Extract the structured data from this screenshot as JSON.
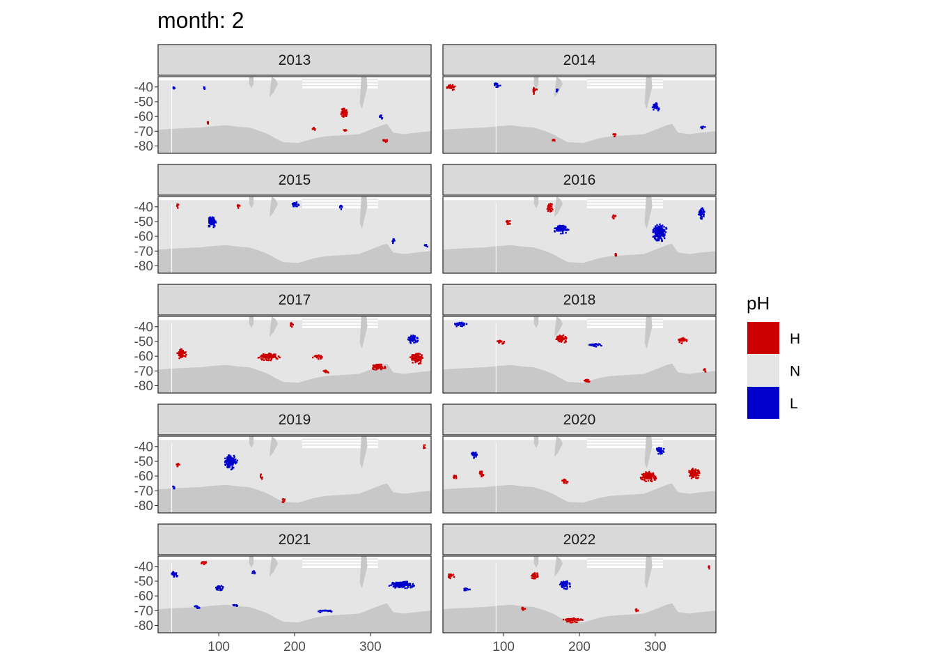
{
  "chart_data": {
    "type": "heatmap",
    "title": "month: 2",
    "xlabel": "",
    "ylabel": "",
    "x_ticks": [
      100,
      200,
      300
    ],
    "x_tick_labels": [
      "100",
      "200",
      "300"
    ],
    "y_ticks": [
      -40,
      -50,
      -60,
      -70,
      -80
    ],
    "y_tick_labels": [
      "-40",
      "-50",
      "-60",
      "-70",
      "-80"
    ],
    "xlim": [
      20,
      380
    ],
    "ylim": [
      -85,
      -33
    ],
    "legend": {
      "title": "pH",
      "position": "right",
      "entries": [
        {
          "label": "H",
          "color": "#CC0000"
        },
        {
          "label": "N",
          "color": "#E5E5E5"
        },
        {
          "label": "L",
          "color": "#0000CC"
        }
      ]
    },
    "colors": {
      "ocean": "#E5E5E5",
      "land": "#C8C8C8",
      "strip_bg": "#D9D9D9",
      "panel_border": "#333333"
    },
    "panels": [
      {
        "year": "2013",
        "regions": [
          {
            "category": "H",
            "lon": 265,
            "lat": -57,
            "dlon": 10,
            "dlat": 7
          },
          {
            "category": "L",
            "lon": 313,
            "lat": -60,
            "dlon": 5,
            "dlat": 3
          },
          {
            "category": "H",
            "lon": 225,
            "lat": -68,
            "dlon": 5,
            "dlat": 2
          },
          {
            "category": "H",
            "lon": 265,
            "lat": -69,
            "dlon": 6,
            "dlat": 1
          },
          {
            "category": "H",
            "lon": 318,
            "lat": -76,
            "dlon": 8,
            "dlat": 2
          },
          {
            "category": "L",
            "lon": 40,
            "lat": -40,
            "dlon": 2,
            "dlat": 2
          },
          {
            "category": "L",
            "lon": 80,
            "lat": -40,
            "dlon": 2,
            "dlat": 2
          },
          {
            "category": "H",
            "lon": 85,
            "lat": -64,
            "dlon": 3,
            "dlat": 2
          }
        ]
      },
      {
        "year": "2014",
        "regions": [
          {
            "category": "H",
            "lon": 30,
            "lat": -40,
            "dlon": 12,
            "dlat": 4
          },
          {
            "category": "L",
            "lon": 90,
            "lat": -38,
            "dlon": 10,
            "dlat": 3
          },
          {
            "category": "H",
            "lon": 140,
            "lat": -42,
            "dlon": 6,
            "dlat": 5
          },
          {
            "category": "L",
            "lon": 170,
            "lat": -42,
            "dlon": 3,
            "dlat": 3
          },
          {
            "category": "L",
            "lon": 300,
            "lat": -53,
            "dlon": 10,
            "dlat": 6
          },
          {
            "category": "L",
            "lon": 362,
            "lat": -67,
            "dlon": 8,
            "dlat": 2
          },
          {
            "category": "H",
            "lon": 245,
            "lat": -72,
            "dlon": 5,
            "dlat": 2
          },
          {
            "category": "H",
            "lon": 165,
            "lat": -76,
            "dlon": 4,
            "dlat": 2
          }
        ]
      },
      {
        "year": "2015",
        "regions": [
          {
            "category": "L",
            "lon": 90,
            "lat": -50,
            "dlon": 12,
            "dlat": 8
          },
          {
            "category": "L",
            "lon": 200,
            "lat": -38,
            "dlon": 10,
            "dlat": 4
          },
          {
            "category": "L",
            "lon": 330,
            "lat": -63,
            "dlon": 4,
            "dlat": 5
          },
          {
            "category": "L",
            "lon": 372,
            "lat": -66,
            "dlon": 5,
            "dlat": 2
          },
          {
            "category": "H",
            "lon": 45,
            "lat": -39,
            "dlon": 3,
            "dlat": 3
          },
          {
            "category": "H",
            "lon": 125,
            "lat": -39,
            "dlon": 3,
            "dlat": 3
          },
          {
            "category": "L",
            "lon": 260,
            "lat": -40,
            "dlon": 4,
            "dlat": 3
          }
        ]
      },
      {
        "year": "2016",
        "regions": [
          {
            "category": "L",
            "lon": 175,
            "lat": -55,
            "dlon": 20,
            "dlat": 6
          },
          {
            "category": "L",
            "lon": 305,
            "lat": -57,
            "dlon": 20,
            "dlat": 12
          },
          {
            "category": "H",
            "lon": 160,
            "lat": -40,
            "dlon": 8,
            "dlat": 6
          },
          {
            "category": "H",
            "lon": 245,
            "lat": -46,
            "dlon": 5,
            "dlat": 3
          },
          {
            "category": "L",
            "lon": 360,
            "lat": -44,
            "dlon": 8,
            "dlat": 8
          },
          {
            "category": "H",
            "lon": 105,
            "lat": -50,
            "dlon": 8,
            "dlat": 3
          },
          {
            "category": "H",
            "lon": 247,
            "lat": -72,
            "dlon": 2,
            "dlat": 2
          }
        ]
      },
      {
        "year": "2017",
        "regions": [
          {
            "category": "H",
            "lon": 50,
            "lat": -58,
            "dlon": 12,
            "dlat": 7
          },
          {
            "category": "H",
            "lon": 165,
            "lat": -60,
            "dlon": 30,
            "dlat": 5
          },
          {
            "category": "H",
            "lon": 360,
            "lat": -61,
            "dlon": 18,
            "dlat": 8
          },
          {
            "category": "H",
            "lon": 310,
            "lat": -67,
            "dlon": 18,
            "dlat": 5
          },
          {
            "category": "H",
            "lon": 230,
            "lat": -60,
            "dlon": 15,
            "dlat": 3
          },
          {
            "category": "L",
            "lon": 355,
            "lat": -48,
            "dlon": 14,
            "dlat": 6
          },
          {
            "category": "H",
            "lon": 195,
            "lat": -38,
            "dlon": 4,
            "dlat": 3
          },
          {
            "category": "H",
            "lon": 240,
            "lat": -70,
            "dlon": 10,
            "dlat": 2
          }
        ]
      },
      {
        "year": "2018",
        "regions": [
          {
            "category": "H",
            "lon": 175,
            "lat": -48,
            "dlon": 15,
            "dlat": 6
          },
          {
            "category": "L",
            "lon": 42,
            "lat": -38,
            "dlon": 18,
            "dlat": 3
          },
          {
            "category": "H",
            "lon": 95,
            "lat": -50,
            "dlon": 10,
            "dlat": 3
          },
          {
            "category": "H",
            "lon": 335,
            "lat": -49,
            "dlon": 12,
            "dlat": 4
          },
          {
            "category": "L",
            "lon": 220,
            "lat": -52,
            "dlon": 25,
            "dlat": 2
          },
          {
            "category": "H",
            "lon": 365,
            "lat": -69,
            "dlon": 6,
            "dlat": 2
          },
          {
            "category": "H",
            "lon": 210,
            "lat": -76,
            "dlon": 10,
            "dlat": 2
          }
        ]
      },
      {
        "year": "2019",
        "regions": [
          {
            "category": "L",
            "lon": 115,
            "lat": -50,
            "dlon": 18,
            "dlat": 10
          },
          {
            "category": "H",
            "lon": 185,
            "lat": -76,
            "dlon": 6,
            "dlat": 3
          },
          {
            "category": "H",
            "lon": 155,
            "lat": -60,
            "dlon": 3,
            "dlat": 5
          },
          {
            "category": "H",
            "lon": 45,
            "lat": -52,
            "dlon": 4,
            "dlat": 2
          },
          {
            "category": "H",
            "lon": 370,
            "lat": -40,
            "dlon": 2,
            "dlat": 5
          },
          {
            "category": "L",
            "lon": 40,
            "lat": -67,
            "dlon": 3,
            "dlat": 2
          }
        ]
      },
      {
        "year": "2020",
        "regions": [
          {
            "category": "H",
            "lon": 290,
            "lat": -60,
            "dlon": 22,
            "dlat": 7
          },
          {
            "category": "H",
            "lon": 70,
            "lat": -58,
            "dlon": 8,
            "dlat": 4
          },
          {
            "category": "L",
            "lon": 305,
            "lat": -42,
            "dlon": 12,
            "dlat": 5
          },
          {
            "category": "H",
            "lon": 350,
            "lat": -58,
            "dlon": 15,
            "dlat": 8
          },
          {
            "category": "H",
            "lon": 180,
            "lat": -63,
            "dlon": 10,
            "dlat": 3
          },
          {
            "category": "L",
            "lon": 60,
            "lat": -45,
            "dlon": 8,
            "dlat": 5
          },
          {
            "category": "H",
            "lon": 35,
            "lat": -60,
            "dlon": 5,
            "dlat": 3
          }
        ]
      },
      {
        "year": "2021",
        "regions": [
          {
            "category": "L",
            "lon": 240,
            "lat": -70,
            "dlon": 20,
            "dlat": 2
          },
          {
            "category": "L",
            "lon": 340,
            "lat": -52,
            "dlon": 35,
            "dlat": 5
          },
          {
            "category": "L",
            "lon": 40,
            "lat": -45,
            "dlon": 10,
            "dlat": 4
          },
          {
            "category": "H",
            "lon": 80,
            "lat": -37,
            "dlon": 10,
            "dlat": 2
          },
          {
            "category": "L",
            "lon": 70,
            "lat": -67,
            "dlon": 10,
            "dlat": 2
          },
          {
            "category": "L",
            "lon": 100,
            "lat": -54,
            "dlon": 10,
            "dlat": 4
          },
          {
            "category": "L",
            "lon": 145,
            "lat": -44,
            "dlon": 4,
            "dlat": 3
          },
          {
            "category": "L",
            "lon": 120,
            "lat": -66,
            "dlon": 8,
            "dlat": 1
          }
        ]
      },
      {
        "year": "2022",
        "regions": [
          {
            "category": "H",
            "lon": 190,
            "lat": -76,
            "dlon": 30,
            "dlat": 3
          },
          {
            "category": "H",
            "lon": 140,
            "lat": -46,
            "dlon": 10,
            "dlat": 5
          },
          {
            "category": "L",
            "lon": 180,
            "lat": -52,
            "dlon": 15,
            "dlat": 6
          },
          {
            "category": "H",
            "lon": 30,
            "lat": -46,
            "dlon": 8,
            "dlat": 4
          },
          {
            "category": "L",
            "lon": 50,
            "lat": -55,
            "dlon": 10,
            "dlat": 2
          },
          {
            "category": "H",
            "lon": 125,
            "lat": -68,
            "dlon": 5,
            "dlat": 2
          },
          {
            "category": "H",
            "lon": 275,
            "lat": -69,
            "dlon": 4,
            "dlat": 2
          },
          {
            "category": "H",
            "lon": 370,
            "lat": -40,
            "dlon": 2,
            "dlat": 2
          }
        ]
      }
    ]
  }
}
